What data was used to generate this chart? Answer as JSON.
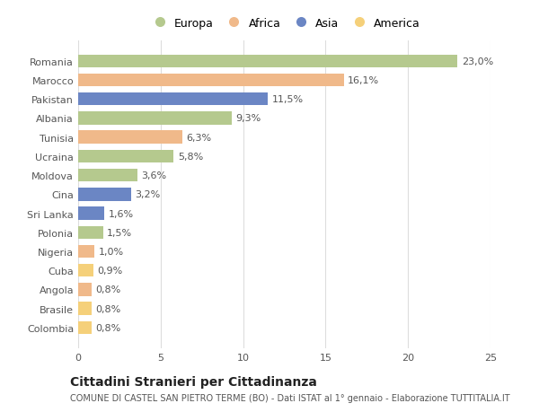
{
  "categories": [
    "Romania",
    "Marocco",
    "Pakistan",
    "Albania",
    "Tunisia",
    "Ucraina",
    "Moldova",
    "Cina",
    "Sri Lanka",
    "Polonia",
    "Nigeria",
    "Cuba",
    "Angola",
    "Brasile",
    "Colombia"
  ],
  "values": [
    23.0,
    16.1,
    11.5,
    9.3,
    6.3,
    5.8,
    3.6,
    3.2,
    1.6,
    1.5,
    1.0,
    0.9,
    0.8,
    0.8,
    0.8
  ],
  "labels": [
    "23,0%",
    "16,1%",
    "11,5%",
    "9,3%",
    "6,3%",
    "5,8%",
    "3,6%",
    "3,2%",
    "1,6%",
    "1,5%",
    "1,0%",
    "0,9%",
    "0,8%",
    "0,8%",
    "0,8%"
  ],
  "colors": [
    "#b5c98e",
    "#f0b98a",
    "#6b86c4",
    "#b5c98e",
    "#f0b98a",
    "#b5c98e",
    "#b5c98e",
    "#6b86c4",
    "#6b86c4",
    "#b5c98e",
    "#f0b98a",
    "#f5d07a",
    "#f0b98a",
    "#f5d07a",
    "#f5d07a"
  ],
  "legend_labels": [
    "Europa",
    "Africa",
    "Asia",
    "America"
  ],
  "legend_colors": [
    "#b5c98e",
    "#f0b98a",
    "#6b86c4",
    "#f5d07a"
  ],
  "title": "Cittadini Stranieri per Cittadinanza",
  "subtitle": "COMUNE DI CASTEL SAN PIETRO TERME (BO) - Dati ISTAT al 1° gennaio - Elaborazione TUTTITALIA.IT",
  "xlim": [
    0,
    25
  ],
  "xticks": [
    0,
    5,
    10,
    15,
    20,
    25
  ],
  "background_color": "#ffffff",
  "grid_color": "#dddddd",
  "bar_height": 0.68,
  "title_fontsize": 10,
  "subtitle_fontsize": 7,
  "tick_fontsize": 8,
  "label_fontsize": 8,
  "legend_fontsize": 9
}
